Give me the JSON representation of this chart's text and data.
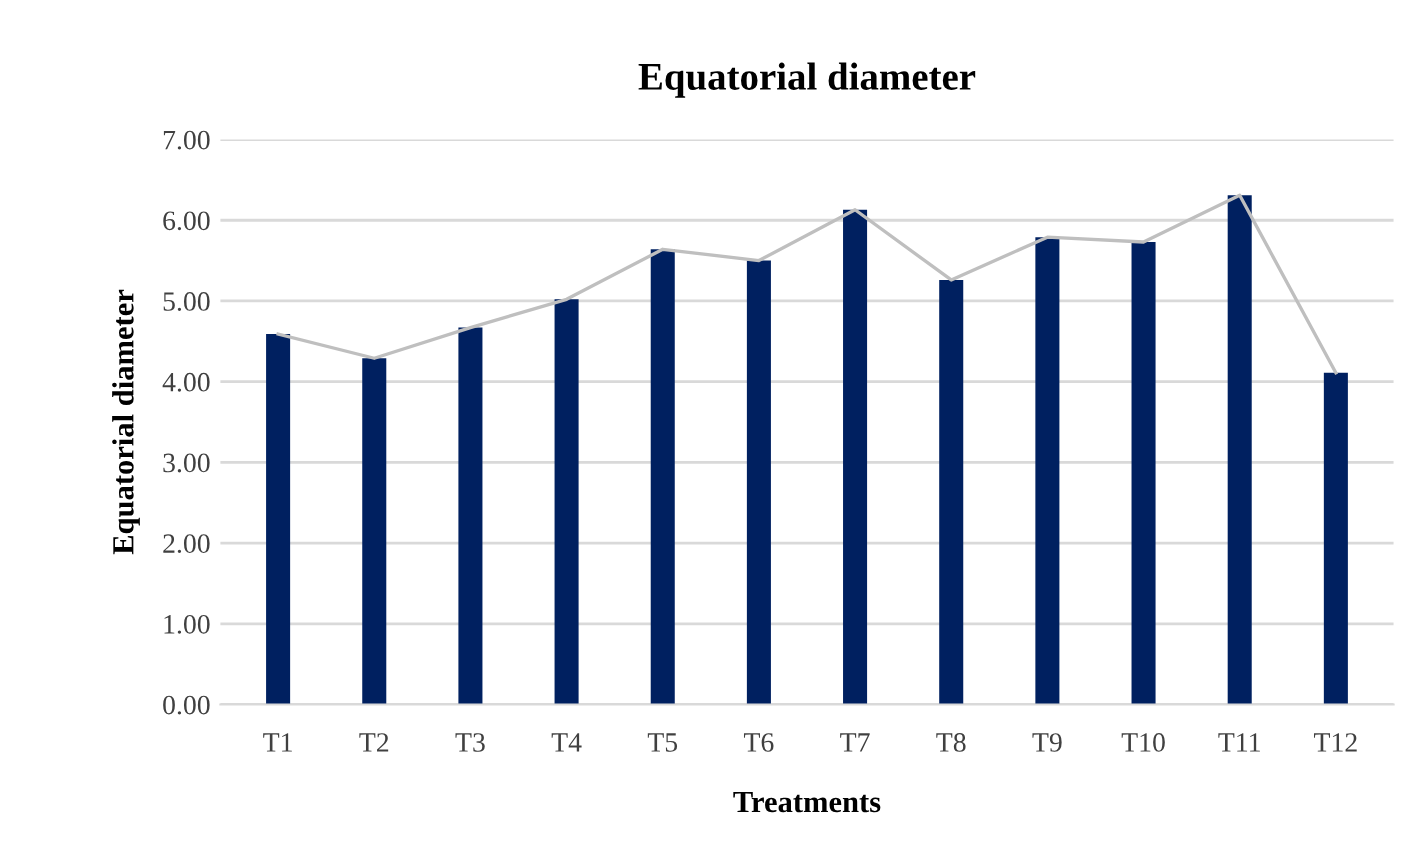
{
  "chart_data": {
    "type": "bar",
    "title": "Equatorial diameter",
    "xlabel": "Treatments",
    "ylabel": "Equatorial diameter",
    "categories": [
      "T1",
      "T2",
      "T3",
      "T4",
      "T5",
      "T6",
      "T7",
      "T8",
      "T9",
      "T10",
      "T11",
      "T12"
    ],
    "series": [
      {
        "color": "#002060",
        "values": [
          4.59,
          4.29,
          4.67,
          5.02,
          5.64,
          5.5,
          6.13,
          5.26,
          5.79,
          5.73,
          6.31,
          4.11
        ]
      },
      {
        "type": "line",
        "color": "#bfbfbf",
        "values": [
          4.59,
          4.29,
          4.67,
          5.02,
          5.64,
          5.5,
          6.13,
          5.26,
          5.79,
          5.73,
          6.31,
          4.11
        ]
      }
    ],
    "ylim": [
      0,
      7
    ],
    "yticks": [
      {
        "value": 0,
        "label": "0.00"
      },
      {
        "value": 1,
        "label": "1.00"
      },
      {
        "value": 2,
        "label": "2.00"
      },
      {
        "value": 3,
        "label": "3.00"
      },
      {
        "value": 4,
        "label": "4.00"
      },
      {
        "value": 5,
        "label": "5.00"
      },
      {
        "value": 6,
        "label": "6.00"
      },
      {
        "value": 7,
        "label": "7.00"
      }
    ],
    "grid": "y"
  }
}
